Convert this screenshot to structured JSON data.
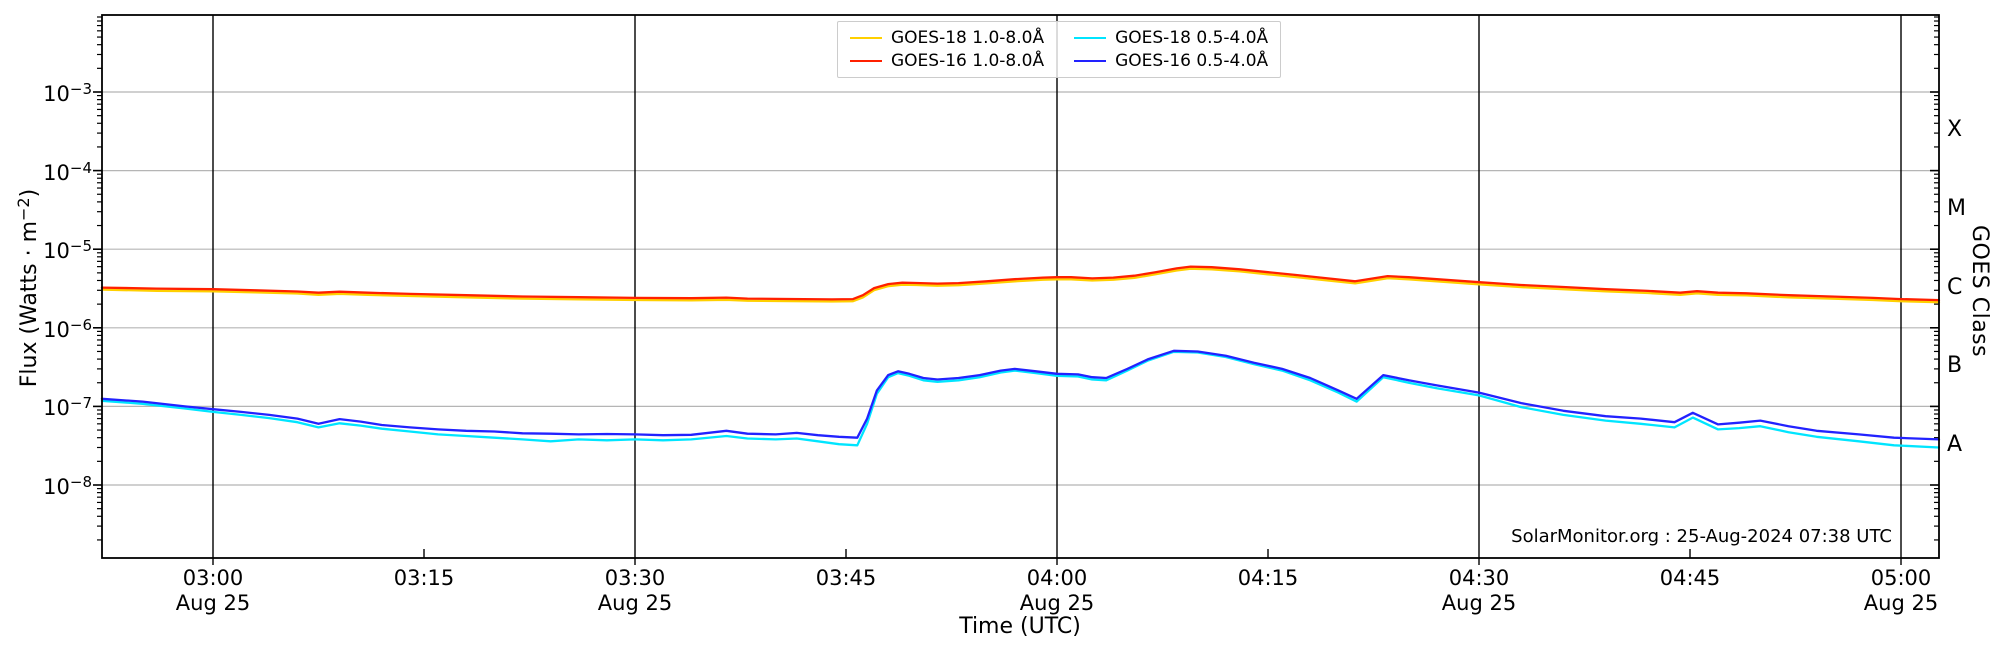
{
  "figure": {
    "attribution": "SolarMonitor.org : 25-Aug-2024 07:38 UTC"
  },
  "chart_data": {
    "type": "line",
    "xlabel": "Time (UTC)",
    "ylabel_left_pre": "Flux (Watts · m",
    "ylabel_left_exp": "−2",
    "ylabel_left_post": ")",
    "ylabel_right": "GOES Class",
    "grid": {
      "vertical_lines_at_minutes": [
        0,
        30,
        60,
        90,
        120
      ],
      "horizontal_lines_at_exponents": [
        -3,
        -4,
        -5,
        -6,
        -7,
        -8
      ]
    },
    "x_axis": {
      "units": "minutes after 03:00 UTC",
      "start_minutes": -7.9,
      "end_minutes": 122.7,
      "ticks": [
        {
          "min": 0,
          "time": "03:00",
          "date": "Aug 25",
          "major": true
        },
        {
          "min": 15,
          "time": "03:15",
          "date": "",
          "major": false
        },
        {
          "min": 30,
          "time": "03:30",
          "date": "Aug 25",
          "major": true
        },
        {
          "min": 45,
          "time": "03:45",
          "date": "",
          "major": false
        },
        {
          "min": 60,
          "time": "04:00",
          "date": "Aug 25",
          "major": true
        },
        {
          "min": 75,
          "time": "04:15",
          "date": "",
          "major": false
        },
        {
          "min": 90,
          "time": "04:30",
          "date": "Aug 25",
          "major": true
        },
        {
          "min": 105,
          "time": "04:45",
          "date": "",
          "major": false
        },
        {
          "min": 120,
          "time": "05:00",
          "date": "Aug 25",
          "major": true
        }
      ]
    },
    "y_axis": {
      "scale": "log",
      "base": "10",
      "decade_exponents": [
        -3,
        -4,
        -5,
        -6,
        -7,
        -8
      ],
      "ylim_exponents": [
        -8.93,
        -2.02
      ]
    },
    "goes_classes": [
      {
        "label": "X",
        "exp_mid": -3.5
      },
      {
        "label": "M",
        "exp_mid": -4.5
      },
      {
        "label": "C",
        "exp_mid": -5.5
      },
      {
        "label": "B",
        "exp_mid": -6.5
      },
      {
        "label": "A",
        "exp_mid": -7.5
      }
    ],
    "legend": [
      {
        "label": "GOES-18 1.0-8.0Å",
        "color": "#ffd000"
      },
      {
        "label": "GOES-16 1.0-8.0Å",
        "color": "#ff2000"
      },
      {
        "label": "GOES-18 0.5-4.0Å",
        "color": "#00e5ff"
      },
      {
        "label": "GOES-16 0.5-4.0Å",
        "color": "#2222ff"
      }
    ],
    "series": [
      {
        "name": "GOES-18 1.0-8.0Å",
        "color": "#ffd000",
        "z": 1,
        "points": [
          [
            -7.9,
            3.06e-06
          ],
          [
            -4,
            2.96e-06
          ],
          [
            0,
            2.91e-06
          ],
          [
            3,
            2.82e-06
          ],
          [
            6,
            2.73e-06
          ],
          [
            7.5,
            2.63e-06
          ],
          [
            9,
            2.71e-06
          ],
          [
            11,
            2.63e-06
          ],
          [
            14,
            2.54e-06
          ],
          [
            18,
            2.44e-06
          ],
          [
            22,
            2.35e-06
          ],
          [
            26,
            2.3e-06
          ],
          [
            30,
            2.26e-06
          ],
          [
            34,
            2.24e-06
          ],
          [
            36.5,
            2.27e-06
          ],
          [
            38,
            2.21e-06
          ],
          [
            40,
            2.19e-06
          ],
          [
            42,
            2.18e-06
          ],
          [
            44,
            2.16e-06
          ],
          [
            45.5,
            2.18e-06
          ],
          [
            46.2,
            2.44e-06
          ],
          [
            47,
            3.01e-06
          ],
          [
            48,
            3.38e-06
          ],
          [
            49,
            3.53e-06
          ],
          [
            50,
            3.5e-06
          ],
          [
            51.5,
            3.43e-06
          ],
          [
            53,
            3.48e-06
          ],
          [
            55,
            3.67e-06
          ],
          [
            57,
            3.9e-06
          ],
          [
            59,
            4.09e-06
          ],
          [
            60,
            4.14e-06
          ],
          [
            61,
            4.14e-06
          ],
          [
            62.5,
            4e-06
          ],
          [
            64,
            4.09e-06
          ],
          [
            65.5,
            4.32e-06
          ],
          [
            67,
            4.79e-06
          ],
          [
            68.5,
            5.36e-06
          ],
          [
            69.5,
            5.64e-06
          ],
          [
            71,
            5.55e-06
          ],
          [
            73,
            5.22e-06
          ],
          [
            75,
            4.79e-06
          ],
          [
            77,
            4.42e-06
          ],
          [
            79,
            4.04e-06
          ],
          [
            81.2,
            3.67e-06
          ],
          [
            83.5,
            4.28e-06
          ],
          [
            85,
            4.14e-06
          ],
          [
            87,
            3.9e-06
          ],
          [
            90,
            3.57e-06
          ],
          [
            93,
            3.29e-06
          ],
          [
            96,
            3.1e-06
          ],
          [
            99,
            2.91e-06
          ],
          [
            102,
            2.77e-06
          ],
          [
            104.3,
            2.63e-06
          ],
          [
            105.5,
            2.74e-06
          ],
          [
            107,
            2.63e-06
          ],
          [
            109,
            2.59e-06
          ],
          [
            112,
            2.44e-06
          ],
          [
            115,
            2.35e-06
          ],
          [
            118,
            2.26e-06
          ],
          [
            120,
            2.18e-06
          ],
          [
            122.7,
            2.12e-06
          ]
        ]
      },
      {
        "name": "GOES-18 0.5-4.0Å",
        "color": "#00e5ff",
        "z": 2,
        "points": [
          [
            -7.9,
            1.18e-07
          ],
          [
            -5,
            1.08e-07
          ],
          [
            -2,
            9.4e-08
          ],
          [
            0,
            8.5e-08
          ],
          [
            2,
            7.8e-08
          ],
          [
            4,
            7.1e-08
          ],
          [
            6,
            6.3e-08
          ],
          [
            7.5,
            5.4e-08
          ],
          [
            9,
            6.1e-08
          ],
          [
            10.5,
            5.7e-08
          ],
          [
            12,
            5.2e-08
          ],
          [
            14,
            4.8e-08
          ],
          [
            16,
            4.4e-08
          ],
          [
            18,
            4.2e-08
          ],
          [
            20,
            4e-08
          ],
          [
            22,
            3.8e-08
          ],
          [
            24,
            3.6e-08
          ],
          [
            26,
            3.8e-08
          ],
          [
            28,
            3.7e-08
          ],
          [
            30,
            3.8e-08
          ],
          [
            32,
            3.7e-08
          ],
          [
            34,
            3.8e-08
          ],
          [
            36.5,
            4.2e-08
          ],
          [
            38,
            3.9e-08
          ],
          [
            40,
            3.8e-08
          ],
          [
            41.5,
            3.9e-08
          ],
          [
            43,
            3.6e-08
          ],
          [
            44.5,
            3.3e-08
          ],
          [
            45.8,
            3.2e-08
          ],
          [
            46.5,
            6e-08
          ],
          [
            47.2,
            1.45e-07
          ],
          [
            48,
            2.35e-07
          ],
          [
            48.7,
            2.65e-07
          ],
          [
            49.5,
            2.45e-07
          ],
          [
            50.5,
            2.15e-07
          ],
          [
            51.5,
            2.05e-07
          ],
          [
            53,
            2.15e-07
          ],
          [
            54.5,
            2.35e-07
          ],
          [
            56,
            2.7e-07
          ],
          [
            57,
            2.85e-07
          ],
          [
            58.5,
            2.65e-07
          ],
          [
            60,
            2.45e-07
          ],
          [
            61.5,
            2.4e-07
          ],
          [
            62.5,
            2.2e-07
          ],
          [
            63.5,
            2.15e-07
          ],
          [
            65,
            2.85e-07
          ],
          [
            66.5,
            3.85e-07
          ],
          [
            68.3,
            4.95e-07
          ],
          [
            70,
            4.85e-07
          ],
          [
            72,
            4.25e-07
          ],
          [
            74,
            3.45e-07
          ],
          [
            76,
            2.85e-07
          ],
          [
            78,
            2.15e-07
          ],
          [
            80,
            1.5e-07
          ],
          [
            81.3,
            1.15e-07
          ],
          [
            83.2,
            2.35e-07
          ],
          [
            85,
            2e-07
          ],
          [
            87,
            1.7e-07
          ],
          [
            90,
            1.38e-07
          ],
          [
            93,
            9.8e-08
          ],
          [
            96,
            7.8e-08
          ],
          [
            99,
            6.6e-08
          ],
          [
            101.5,
            6e-08
          ],
          [
            103.9,
            5.4e-08
          ],
          [
            105.2,
            7.2e-08
          ],
          [
            107,
            5.1e-08
          ],
          [
            108.5,
            5.3e-08
          ],
          [
            110,
            5.6e-08
          ],
          [
            112,
            4.7e-08
          ],
          [
            114,
            4.1e-08
          ],
          [
            117,
            3.6e-08
          ],
          [
            119.5,
            3.2e-08
          ],
          [
            122.7,
            3e-08
          ]
        ]
      },
      {
        "name": "GOES-16 1.0-8.0Å",
        "color": "#ff2000",
        "z": 3,
        "points": [
          [
            -7.9,
            3.25e-06
          ],
          [
            -4,
            3.15e-06
          ],
          [
            0,
            3.1e-06
          ],
          [
            3,
            3e-06
          ],
          [
            6,
            2.9e-06
          ],
          [
            7.5,
            2.8e-06
          ],
          [
            9,
            2.88e-06
          ],
          [
            11,
            2.8e-06
          ],
          [
            14,
            2.7e-06
          ],
          [
            18,
            2.6e-06
          ],
          [
            22,
            2.5e-06
          ],
          [
            26,
            2.45e-06
          ],
          [
            30,
            2.4e-06
          ],
          [
            34,
            2.38e-06
          ],
          [
            36.5,
            2.42e-06
          ],
          [
            38,
            2.35e-06
          ],
          [
            40,
            2.33e-06
          ],
          [
            42,
            2.32e-06
          ],
          [
            44,
            2.3e-06
          ],
          [
            45.5,
            2.32e-06
          ],
          [
            46.2,
            2.6e-06
          ],
          [
            47,
            3.2e-06
          ],
          [
            48,
            3.6e-06
          ],
          [
            49,
            3.75e-06
          ],
          [
            50,
            3.72e-06
          ],
          [
            51.5,
            3.65e-06
          ],
          [
            53,
            3.7e-06
          ],
          [
            55,
            3.9e-06
          ],
          [
            57,
            4.15e-06
          ],
          [
            59,
            4.35e-06
          ],
          [
            60,
            4.4e-06
          ],
          [
            61,
            4.4e-06
          ],
          [
            62.5,
            4.25e-06
          ],
          [
            64,
            4.35e-06
          ],
          [
            65.5,
            4.6e-06
          ],
          [
            67,
            5.1e-06
          ],
          [
            68.5,
            5.7e-06
          ],
          [
            69.5,
            6e-06
          ],
          [
            71,
            5.9e-06
          ],
          [
            73,
            5.55e-06
          ],
          [
            75,
            5.1e-06
          ],
          [
            77,
            4.7e-06
          ],
          [
            79,
            4.3e-06
          ],
          [
            81.2,
            3.9e-06
          ],
          [
            83.5,
            4.55e-06
          ],
          [
            85,
            4.4e-06
          ],
          [
            87,
            4.15e-06
          ],
          [
            90,
            3.8e-06
          ],
          [
            93,
            3.5e-06
          ],
          [
            96,
            3.3e-06
          ],
          [
            99,
            3.1e-06
          ],
          [
            102,
            2.95e-06
          ],
          [
            104.3,
            2.8e-06
          ],
          [
            105.5,
            2.92e-06
          ],
          [
            107,
            2.8e-06
          ],
          [
            109,
            2.75e-06
          ],
          [
            112,
            2.6e-06
          ],
          [
            115,
            2.5e-06
          ],
          [
            118,
            2.4e-06
          ],
          [
            120,
            2.32e-06
          ],
          [
            122.7,
            2.25e-06
          ]
        ]
      },
      {
        "name": "GOES-16 0.5-4.0Å",
        "color": "#2222ff",
        "z": 4,
        "points": [
          [
            -7.9,
            1.25e-07
          ],
          [
            -5,
            1.15e-07
          ],
          [
            -2,
            1e-07
          ],
          [
            0,
            9.2e-08
          ],
          [
            2,
            8.5e-08
          ],
          [
            4,
            7.8e-08
          ],
          [
            6,
            7e-08
          ],
          [
            7.5,
            6e-08
          ],
          [
            9,
            6.9e-08
          ],
          [
            10.5,
            6.4e-08
          ],
          [
            12,
            5.8e-08
          ],
          [
            14,
            5.4e-08
          ],
          [
            16,
            5.1e-08
          ],
          [
            18,
            4.9e-08
          ],
          [
            20,
            4.8e-08
          ],
          [
            22,
            4.55e-08
          ],
          [
            24,
            4.5e-08
          ],
          [
            26,
            4.4e-08
          ],
          [
            28,
            4.45e-08
          ],
          [
            30,
            4.4e-08
          ],
          [
            32,
            4.3e-08
          ],
          [
            34,
            4.35e-08
          ],
          [
            36.5,
            4.9e-08
          ],
          [
            38,
            4.5e-08
          ],
          [
            40,
            4.4e-08
          ],
          [
            41.5,
            4.6e-08
          ],
          [
            43,
            4.3e-08
          ],
          [
            44.5,
            4.1e-08
          ],
          [
            45.8,
            4e-08
          ],
          [
            46.5,
            7e-08
          ],
          [
            47.2,
            1.6e-07
          ],
          [
            48,
            2.5e-07
          ],
          [
            48.7,
            2.8e-07
          ],
          [
            49.5,
            2.6e-07
          ],
          [
            50.5,
            2.3e-07
          ],
          [
            51.5,
            2.2e-07
          ],
          [
            53,
            2.3e-07
          ],
          [
            54.5,
            2.5e-07
          ],
          [
            56,
            2.85e-07
          ],
          [
            57,
            3e-07
          ],
          [
            58.5,
            2.8e-07
          ],
          [
            60,
            2.6e-07
          ],
          [
            61.5,
            2.55e-07
          ],
          [
            62.5,
            2.35e-07
          ],
          [
            63.5,
            2.3e-07
          ],
          [
            65,
            3e-07
          ],
          [
            66.5,
            4e-07
          ],
          [
            68.3,
            5.1e-07
          ],
          [
            70,
            5e-07
          ],
          [
            72,
            4.4e-07
          ],
          [
            74,
            3.6e-07
          ],
          [
            76,
            3e-07
          ],
          [
            78,
            2.3e-07
          ],
          [
            80,
            1.6e-07
          ],
          [
            81.3,
            1.25e-07
          ],
          [
            83.2,
            2.5e-07
          ],
          [
            85,
            2.15e-07
          ],
          [
            87,
            1.85e-07
          ],
          [
            90,
            1.5e-07
          ],
          [
            93,
            1.1e-07
          ],
          [
            96,
            8.8e-08
          ],
          [
            99,
            7.5e-08
          ],
          [
            101.5,
            7e-08
          ],
          [
            103.9,
            6.3e-08
          ],
          [
            105.2,
            8.3e-08
          ],
          [
            107,
            5.9e-08
          ],
          [
            108.5,
            6.2e-08
          ],
          [
            110,
            6.6e-08
          ],
          [
            112,
            5.6e-08
          ],
          [
            114,
            4.9e-08
          ],
          [
            117,
            4.4e-08
          ],
          [
            119.5,
            4e-08
          ],
          [
            122.7,
            3.8e-08
          ]
        ]
      }
    ]
  }
}
